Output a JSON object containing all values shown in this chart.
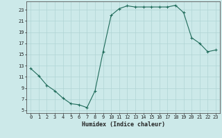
{
  "x": [
    0,
    1,
    2,
    3,
    4,
    5,
    6,
    7,
    8,
    9,
    10,
    11,
    12,
    13,
    14,
    15,
    16,
    17,
    18,
    19,
    20,
    21,
    22,
    23
  ],
  "y": [
    12.5,
    11.2,
    9.5,
    8.5,
    7.2,
    6.2,
    6.0,
    5.5,
    8.5,
    15.5,
    22.0,
    23.2,
    23.7,
    23.5,
    23.5,
    23.5,
    23.5,
    23.5,
    23.8,
    22.5,
    18.0,
    17.0,
    15.5,
    15.8
  ],
  "xlabel": "Humidex (Indice chaleur)",
  "line_color": "#1f6b5a",
  "marker": "+",
  "bg_color": "#cce9e9",
  "grid_color": "#b0d4d4",
  "tick_label_color": "#222222",
  "xlim": [
    -0.5,
    23.5
  ],
  "ylim": [
    4.5,
    24.5
  ],
  "yticks": [
    5,
    7,
    9,
    11,
    13,
    15,
    17,
    19,
    21,
    23
  ],
  "xticks": [
    0,
    1,
    2,
    3,
    4,
    5,
    6,
    7,
    8,
    9,
    10,
    11,
    12,
    13,
    14,
    15,
    16,
    17,
    18,
    19,
    20,
    21,
    22,
    23
  ]
}
